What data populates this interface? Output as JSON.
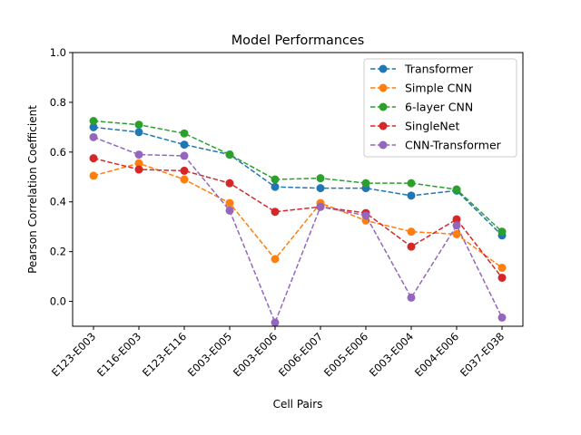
{
  "chart_data": {
    "type": "line",
    "title": "Model Performances",
    "xlabel": "Cell Pairs",
    "ylabel": "Pearson Correlation Coefficient",
    "categories": [
      "E123-E003",
      "E116-E003",
      "E123-E116",
      "E003-E005",
      "E003-E006",
      "E006-E007",
      "E005-E006",
      "E003-E004",
      "E004-E006",
      "E037-E038"
    ],
    "ylim": [
      -0.1,
      1.0
    ],
    "yticks": [
      "0.0",
      "0.2",
      "0.4",
      "0.6",
      "0.8",
      "1.0"
    ],
    "grid": false,
    "legend_position": "top-right",
    "line_style": "dashed",
    "marker": "circle",
    "series": [
      {
        "name": "Transformer",
        "color": "#1f77b4",
        "values": [
          0.7,
          0.68,
          0.63,
          0.59,
          0.46,
          0.455,
          0.455,
          0.425,
          0.445,
          0.265
        ]
      },
      {
        "name": "Simple CNN",
        "color": "#ff7f0e",
        "values": [
          0.505,
          0.555,
          0.49,
          0.395,
          0.17,
          0.395,
          0.325,
          0.28,
          0.27,
          0.135
        ]
      },
      {
        "name": "6-layer CNN",
        "color": "#2ca02c",
        "values": [
          0.725,
          0.71,
          0.675,
          0.59,
          0.49,
          0.495,
          0.475,
          0.475,
          0.45,
          0.28
        ]
      },
      {
        "name": "SingleNet",
        "color": "#d62728",
        "values": [
          0.575,
          0.53,
          0.525,
          0.475,
          0.36,
          0.38,
          0.355,
          0.22,
          0.33,
          0.095
        ]
      },
      {
        "name": "CNN-Transformer",
        "color": "#9467bd",
        "values": [
          0.66,
          0.59,
          0.585,
          0.365,
          -0.085,
          0.38,
          0.345,
          0.015,
          0.305,
          -0.065
        ]
      }
    ]
  }
}
